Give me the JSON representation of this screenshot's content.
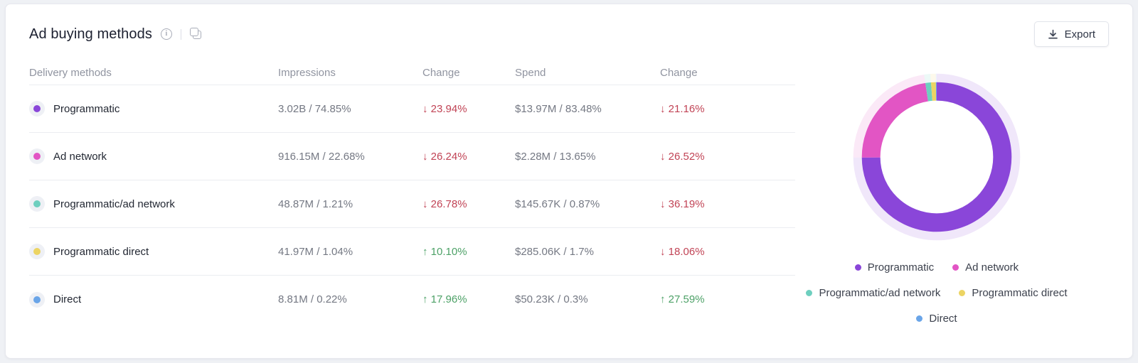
{
  "header": {
    "title": "Ad buying methods",
    "export_label": "Export"
  },
  "table": {
    "headers": [
      "Delivery methods",
      "Impressions",
      "Change",
      "Spend",
      "Change"
    ],
    "rows": [
      {
        "label": "Programmatic",
        "impressions": "3.02B / 74.85%",
        "impressions_change": "23.94%",
        "impressions_change_dir": "down",
        "spend": "$13.97M / 83.48%",
        "spend_change": "21.16%",
        "spend_change_dir": "down"
      },
      {
        "label": "Ad network",
        "impressions": "916.15M / 22.68%",
        "impressions_change": "26.24%",
        "impressions_change_dir": "down",
        "spend": "$2.28M / 13.65%",
        "spend_change": "26.52%",
        "spend_change_dir": "down"
      },
      {
        "label": "Programmatic/ad network",
        "impressions": "48.87M / 1.21%",
        "impressions_change": "26.78%",
        "impressions_change_dir": "down",
        "spend": "$145.67K / 0.87%",
        "spend_change": "36.19%",
        "spend_change_dir": "down"
      },
      {
        "label": "Programmatic direct",
        "impressions": "41.97M / 1.04%",
        "impressions_change": "10.10%",
        "impressions_change_dir": "up",
        "spend": "$285.06K / 1.7%",
        "spend_change": "18.06%",
        "spend_change_dir": "down"
      },
      {
        "label": "Direct",
        "impressions": "8.81M / 0.22%",
        "impressions_change": "17.96%",
        "impressions_change_dir": "up",
        "spend": "$50.23K / 0.3%",
        "spend_change": "27.59%",
        "spend_change_dir": "up"
      }
    ]
  },
  "chart_data": {
    "type": "pie",
    "donut": true,
    "title": "Ad buying methods",
    "categories": [
      "Programmatic",
      "Ad network",
      "Programmatic/ad network",
      "Programmatic direct",
      "Direct"
    ],
    "values": [
      74.85,
      22.68,
      1.21,
      1.04,
      0.22
    ],
    "unit": "%",
    "colors": [
      "#8a46d9",
      "#e255c4",
      "#6ecfbf",
      "#ecd463",
      "#6aa5e8"
    ],
    "start_angle_deg": 0,
    "direction": "clockwise",
    "legend_position": "bottom"
  },
  "legend": {
    "rows": [
      [
        {
          "label": "Programmatic",
          "color": "#8a46d9"
        },
        {
          "label": "Ad network",
          "color": "#e255c4"
        }
      ],
      [
        {
          "label": "Programmatic/ad network",
          "color": "#6ecfbf"
        },
        {
          "label": "Programmatic direct",
          "color": "#ecd463"
        }
      ],
      [
        {
          "label": "Direct",
          "color": "#6aa5e8"
        }
      ]
    ]
  },
  "colors": {
    "positive": "#4da167",
    "negative": "#c14355",
    "accent": "#8a46d9"
  }
}
